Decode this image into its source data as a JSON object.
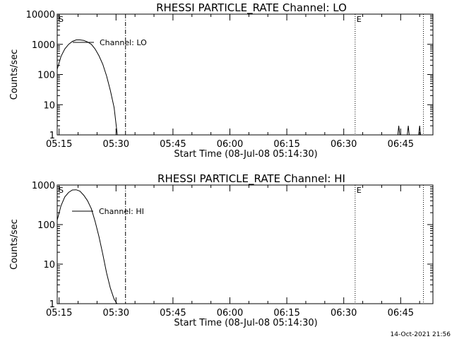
{
  "chart_data": [
    {
      "type": "line",
      "title": "RHESSI PARTICLE_RATE Channel: LO",
      "xlabel": "Start Time (08-Jul-08 05:14:30)",
      "ylabel": "Counts/sec",
      "y_scale": "log",
      "ylim": [
        1,
        10000
      ],
      "xlim": [
        "05:14:30",
        "06:53:30"
      ],
      "x_ticks": [
        "05:15",
        "05:30",
        "05:45",
        "06:00",
        "06:15",
        "06:30",
        "06:45"
      ],
      "y_ticks": [
        "1",
        "10",
        "100",
        "1000",
        "10000"
      ],
      "legend": {
        "placement": "top-left",
        "entries": [
          "Channel: LO"
        ]
      },
      "markers": [
        {
          "time": "05:14:30",
          "label": "S",
          "style": "solid"
        },
        {
          "time": "05:32:30",
          "label": "",
          "style": "dash-dot"
        },
        {
          "time": "06:33:00",
          "label": "E",
          "style": "dotted"
        },
        {
          "time": "06:51:00",
          "label": "",
          "style": "dotted"
        }
      ],
      "series": [
        {
          "name": "Channel: LO",
          "x": [
            "05:14:30",
            "05:15:30",
            "05:16:30",
            "05:17:30",
            "05:18:30",
            "05:19:30",
            "05:20:30",
            "05:21:30",
            "05:22:30",
            "05:23:30",
            "05:24:30",
            "05:25:30",
            "05:26:30",
            "05:27:30",
            "05:28:30",
            "05:29:30",
            "05:30:20"
          ],
          "y": [
            150,
            400,
            700,
            1000,
            1250,
            1400,
            1400,
            1350,
            1200,
            1000,
            700,
            420,
            220,
            90,
            30,
            8,
            1
          ]
        },
        {
          "name": "",
          "x": [
            "06:44:15",
            "06:44:30",
            "06:44:45",
            "06:46:45",
            "06:47:00",
            "06:47:15",
            "06:49:45",
            "06:50:00",
            "06:50:15"
          ],
          "y": [
            1,
            2,
            1,
            1,
            2,
            1,
            1,
            2,
            1
          ]
        }
      ]
    },
    {
      "type": "line",
      "title": "RHESSI PARTICLE_RATE Channel: HI",
      "xlabel": "Start Time (08-Jul-08 05:14:30)",
      "ylabel": "Counts/sec",
      "y_scale": "log",
      "ylim": [
        1,
        1000
      ],
      "xlim": [
        "05:14:30",
        "06:53:30"
      ],
      "x_ticks": [
        "05:15",
        "05:30",
        "05:45",
        "06:00",
        "06:15",
        "06:30",
        "06:45"
      ],
      "y_ticks": [
        "1",
        "10",
        "100",
        "1000"
      ],
      "legend": {
        "placement": "top-left",
        "entries": [
          "Channel: HI"
        ]
      },
      "markers": [
        {
          "time": "05:14:30",
          "label": "S",
          "style": "solid"
        },
        {
          "time": "05:32:30",
          "label": "",
          "style": "dash-dot"
        },
        {
          "time": "06:33:00",
          "label": "E",
          "style": "dotted"
        },
        {
          "time": "06:51:00",
          "label": "",
          "style": "dotted"
        }
      ],
      "series": [
        {
          "name": "Channel: HI",
          "x": [
            "05:14:30",
            "05:15:30",
            "05:16:30",
            "05:17:30",
            "05:18:30",
            "05:19:30",
            "05:20:30",
            "05:21:30",
            "05:22:30",
            "05:23:30",
            "05:24:30",
            "05:25:30",
            "05:26:30",
            "05:27:30",
            "05:28:30",
            "05:29:30",
            "05:30:15"
          ],
          "y": [
            130,
            300,
            500,
            650,
            750,
            760,
            700,
            550,
            400,
            250,
            120,
            50,
            18,
            6,
            2.5,
            1.3,
            1
          ]
        }
      ]
    }
  ],
  "footer": {
    "timestamp": "14-Oct-2021 21:56"
  }
}
